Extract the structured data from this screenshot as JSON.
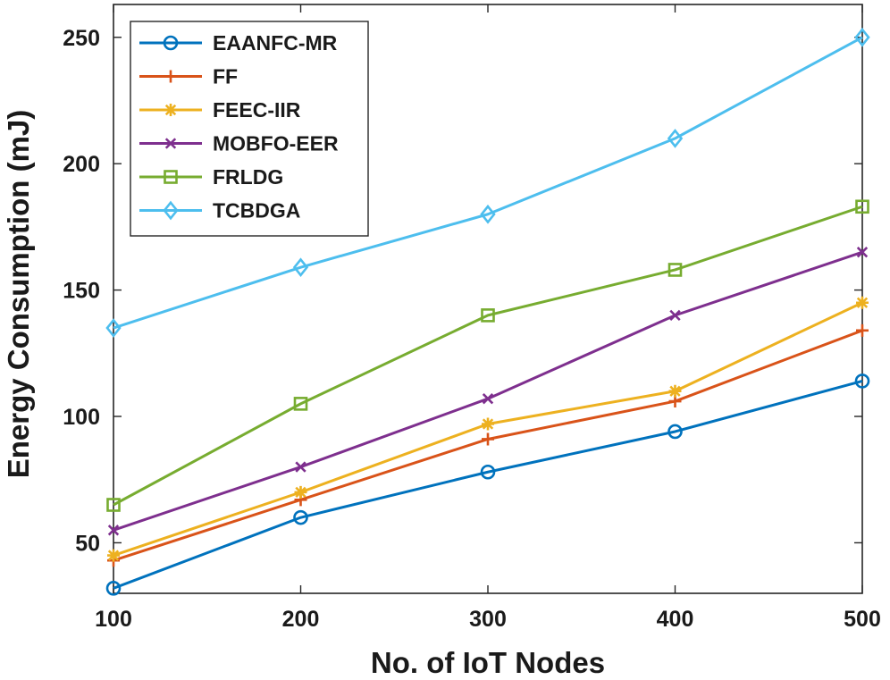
{
  "chart_data": {
    "type": "line",
    "title": "",
    "xlabel": "No. of IoT Nodes",
    "ylabel": "Energy Consumption (mJ)",
    "x": [
      100,
      200,
      300,
      400,
      500
    ],
    "xticks": [
      100,
      200,
      300,
      400,
      500
    ],
    "yticks": [
      50,
      100,
      150,
      200,
      250
    ],
    "xlim": [
      100,
      500
    ],
    "ylim": [
      30,
      263
    ],
    "grid": false,
    "legend_position": "top-left",
    "series": [
      {
        "name": "EAANFC-MR",
        "color": "#0072BD",
        "marker": "circle",
        "values": [
          32,
          60,
          78,
          94,
          114
        ]
      },
      {
        "name": "FF",
        "color": "#D95319",
        "marker": "plus",
        "values": [
          43,
          67,
          91,
          106,
          134
        ]
      },
      {
        "name": "FEEC-IIR",
        "color": "#EDB120",
        "marker": "star",
        "values": [
          45,
          70,
          97,
          110,
          145
        ]
      },
      {
        "name": "MOBFO-EER",
        "color": "#7E2F8E",
        "marker": "x",
        "values": [
          55,
          80,
          107,
          140,
          165
        ]
      },
      {
        "name": "FRLDG",
        "color": "#77AC30",
        "marker": "square",
        "values": [
          65,
          105,
          140,
          158,
          183
        ]
      },
      {
        "name": "TCBDGA",
        "color": "#4DBEEE",
        "marker": "diamond",
        "values": [
          135,
          159,
          180,
          210,
          250
        ]
      }
    ]
  }
}
